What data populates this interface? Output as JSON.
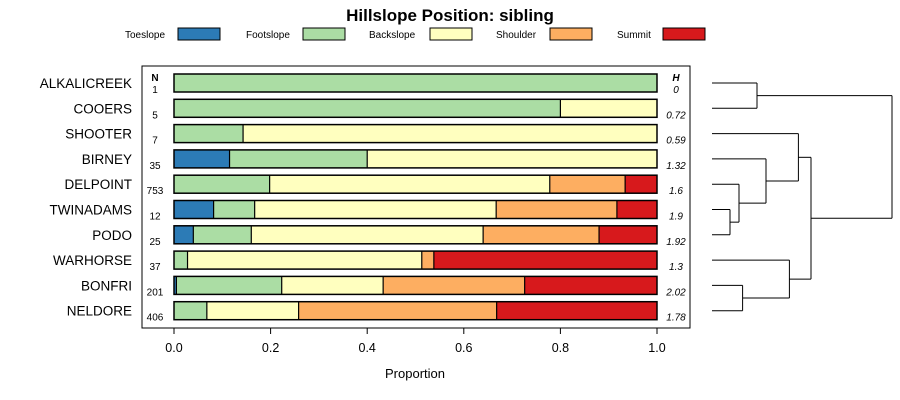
{
  "chart_data": {
    "type": "bar",
    "orientation": "horizontal",
    "stacked": true,
    "title": "Hillslope Position: sibling",
    "xlabel": "Proportion",
    "ylabel": "",
    "xlim": [
      0,
      1
    ],
    "x_ticks": [
      "0.0",
      "0.2",
      "0.4",
      "0.6",
      "0.8",
      "1.0"
    ],
    "n_header": "N",
    "h_header": "H",
    "legend_position": "top",
    "categories": [
      "ALKALICREEK",
      "COOERS",
      "SHOOTER",
      "BIRNEY",
      "DELPOINT",
      "TWINADAMS",
      "PODO",
      "WARHORSE",
      "BONFRI",
      "NELDORE"
    ],
    "n": [
      "1",
      "5",
      "7",
      "35",
      "753",
      "12",
      "25",
      "37",
      "201",
      "406"
    ],
    "h": [
      "0",
      "0.72",
      "0.59",
      "1.32",
      "1.6",
      "1.9",
      "1.92",
      "1.3",
      "2.02",
      "1.78"
    ],
    "series": [
      {
        "name": "Toeslope",
        "color": "#2c7bb6",
        "values": [
          0,
          0,
          0,
          0.115,
          0,
          0.082,
          0.04,
          0,
          0.005,
          0
        ]
      },
      {
        "name": "Footslope",
        "color": "#abdda4",
        "values": [
          1.0,
          0.8,
          0.143,
          0.285,
          0.198,
          0.085,
          0.12,
          0.028,
          0.218,
          0.068
        ]
      },
      {
        "name": "Backslope",
        "color": "#ffffbf",
        "values": [
          0,
          0.2,
          0.857,
          0.6,
          0.58,
          0.5,
          0.48,
          0.485,
          0.21,
          0.19
        ]
      },
      {
        "name": "Shoulder",
        "color": "#fdae61",
        "values": [
          0,
          0,
          0,
          0,
          0.156,
          0.25,
          0.24,
          0.025,
          0.293,
          0.41
        ]
      },
      {
        "name": "Summit",
        "color": "#d7191c",
        "values": [
          0,
          0,
          0,
          0,
          0.066,
          0.083,
          0.12,
          0.462,
          0.274,
          0.332
        ]
      }
    ],
    "dendrogram": {
      "leaf_order": [
        "ALKALICREEK",
        "COOERS",
        "SHOOTER",
        "BIRNEY",
        "DELPOINT",
        "TWINADAMS",
        "PODO",
        "WARHORSE",
        "BONFRI",
        "NELDORE"
      ],
      "merges": [
        {
          "a": "leaf:TWINADAMS",
          "b": "leaf:PODO",
          "height": 0.1
        },
        {
          "a": "leaf:DELPOINT",
          "b": "node:0",
          "height": 0.15
        },
        {
          "a": "leaf:ALKALICREEK",
          "b": "leaf:COOERS",
          "height": 0.25
        },
        {
          "a": "leaf:BONFRI",
          "b": "leaf:NELDORE",
          "height": 0.17
        },
        {
          "a": "leaf:BIRNEY",
          "b": "node:1",
          "height": 0.3
        },
        {
          "a": "leaf:WARHORSE",
          "b": "node:3",
          "height": 0.43
        },
        {
          "a": "leaf:SHOOTER",
          "b": "node:4",
          "height": 0.48
        },
        {
          "a": "node:6",
          "b": "node:5",
          "height": 0.55
        },
        {
          "a": "node:2",
          "b": "node:7",
          "height": 1.0
        }
      ]
    }
  }
}
